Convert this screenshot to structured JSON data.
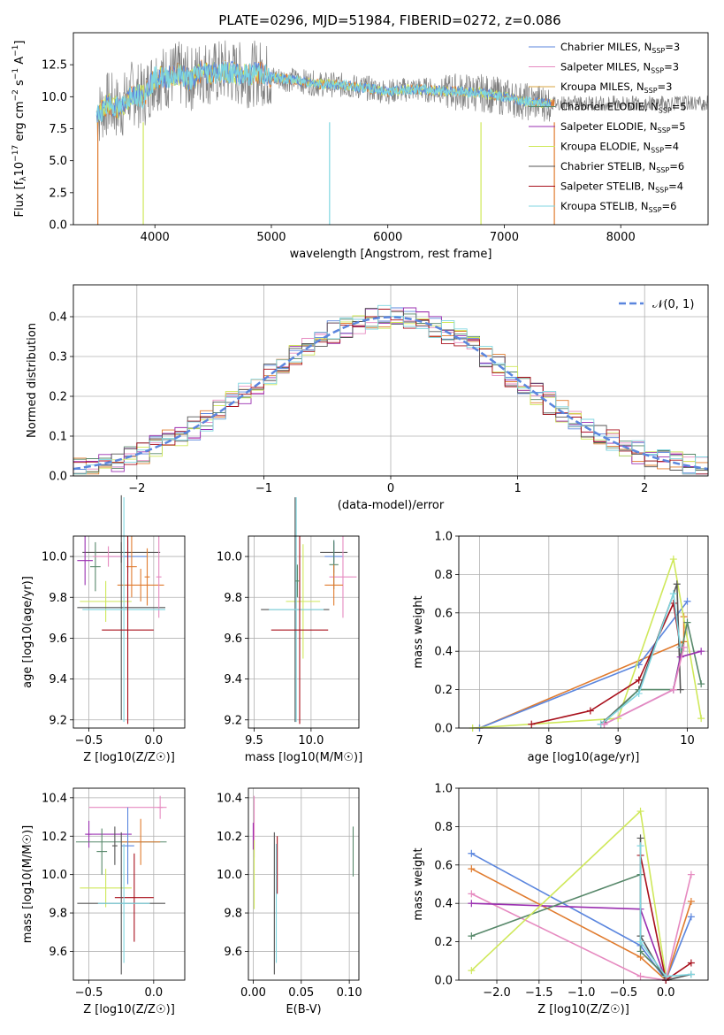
{
  "colors": {
    "chabrier_miles": "#5b86de",
    "salpeter_miles": "#e07b2e",
    "kroupa_miles": "#d9a441",
    "chabrier_elodie": "#57886a",
    "salpeter_elodie": "#9a2fb0",
    "kroupa_elodie": "#cfe85a",
    "chabrier_stelib": "#555555",
    "salpeter_stelib": "#a8101c",
    "kroupa_stelib": "#7fd6e0",
    "pink": "#e68ac0",
    "grid": "#b0b0b0",
    "normal_curve": "#5b86de"
  },
  "legend": [
    {
      "label": "Chabrier MILES, N",
      "n": "=3",
      "color": "#5b86de"
    },
    {
      "label": "Salpeter MILES, N",
      "n": "=3",
      "color": "#e68ac0"
    },
    {
      "label": "Kroupa MILES, N",
      "n": "=3",
      "color": "#d9a441"
    },
    {
      "label": "Chabrier ELODIE, N",
      "n": "=5",
      "color": "#57886a"
    },
    {
      "label": "Salpeter ELODIE, N",
      "n": "=5",
      "color": "#9a2fb0"
    },
    {
      "label": "Kroupa ELODIE, N",
      "n": "=4",
      "color": "#cfe85a"
    },
    {
      "label": "Chabrier STELIB, N",
      "n": "=6",
      "color": "#555555"
    },
    {
      "label": "Salpeter STELIB, N",
      "n": "=4",
      "color": "#a8101c"
    },
    {
      "label": "Kroupa STELIB, N",
      "n": "=6",
      "color": "#7fd6e0"
    }
  ],
  "legend_sub": "SSP",
  "chart_data": [
    {
      "type": "line",
      "title": "PLATE=0296, MJD=51984, FIBERID=0272, z=0.086",
      "xlabel": "wavelength [Angstrom, rest frame]",
      "ylabel": "Flux [f_λ 10^-17 erg cm^-2 s^-1 A^-1]",
      "xlim": [
        3300,
        8750
      ],
      "ylim": [
        0,
        15
      ],
      "xticks": [
        4000,
        5000,
        6000,
        7000,
        8000
      ],
      "yticks": [
        "0.0",
        "2.5",
        "5.0",
        "7.5",
        "10.0",
        "12.5"
      ],
      "data_x": [
        3500,
        3600,
        3700,
        3800,
        3900,
        4000,
        4100,
        4200,
        4300,
        4400,
        4500,
        4600,
        4700,
        4800,
        4900,
        5000,
        5200,
        5400,
        5600,
        5800,
        6000,
        6200,
        6400,
        6600,
        6800,
        7000,
        7200,
        7400
      ],
      "data_y": [
        8.5,
        9.5,
        9.0,
        10.3,
        10.0,
        11.5,
        11.5,
        11.8,
        11.3,
        12.0,
        11.8,
        12.0,
        11.8,
        11.7,
        11.9,
        11.5,
        11.3,
        11.0,
        10.9,
        10.7,
        10.4,
        10.6,
        10.5,
        10.4,
        10.3,
        10.0,
        9.6,
        9.5
      ],
      "grid": false,
      "legend_position": "upper right"
    },
    {
      "type": "bar",
      "xlabel": "(data-model)/error",
      "ylabel": "Normed distribution",
      "xlim": [
        -2.5,
        2.5
      ],
      "ylim": [
        0,
        0.48
      ],
      "xticks": [
        "−2",
        "−1",
        "0",
        "1",
        "2"
      ],
      "yticks": [
        "0.0",
        "0.1",
        "0.2",
        "0.3",
        "0.4"
      ],
      "normal_label": "𝒩(0, 1)",
      "bin_width": 0.1,
      "bins_left": -2.5,
      "grid": true,
      "legend_position": "upper right"
    },
    {
      "type": "scatter",
      "xlabel": "Z [log10(Z/Z☉)]",
      "ylabel": "age [log10(age/yr)]",
      "xlim": [
        -0.62,
        0.24
      ],
      "ylim": [
        9.16,
        10.1
      ],
      "xticks": [
        "−0.5",
        "0.0"
      ],
      "yticks": [
        "9.2",
        "9.4",
        "9.6",
        "9.8",
        "10.0"
      ],
      "grid": true
    },
    {
      "type": "scatter",
      "xlabel": "mass [log10(M/M☉)]",
      "xlim": [
        9.45,
        10.42
      ],
      "ylim": [
        9.16,
        10.1
      ],
      "xticks": [
        "9.5",
        "10.0"
      ],
      "yticks": [
        "9.2",
        "9.4",
        "9.6",
        "9.8",
        "10.0"
      ],
      "grid": true
    },
    {
      "type": "line",
      "xlabel": "age [log10(age/yr)]",
      "ylabel": "mass weight",
      "xlim": [
        6.7,
        10.3
      ],
      "ylim": [
        0,
        1
      ],
      "xticks": [
        "7",
        "8",
        "9",
        "10"
      ],
      "yticks": [
        "0.0",
        "0.2",
        "0.4",
        "0.6",
        "0.8",
        "1.0"
      ],
      "grid": true
    },
    {
      "type": "scatter",
      "xlabel": "Z [log10(Z/Z☉)]",
      "ylabel": "mass [log10(M/M☉)]",
      "xlim": [
        -0.62,
        0.24
      ],
      "ylim": [
        9.45,
        10.45
      ],
      "xticks": [
        "−0.5",
        "0.0"
      ],
      "yticks": [
        "9.6",
        "9.8",
        "10.0",
        "10.2",
        "10.4"
      ],
      "grid": true
    },
    {
      "type": "scatter",
      "xlabel": "E(B-V)",
      "xlim": [
        -0.005,
        0.11
      ],
      "ylim": [
        9.45,
        10.45
      ],
      "xticks": [
        "0.00",
        "0.05",
        "0.10"
      ],
      "yticks": [
        "9.6",
        "9.8",
        "10.0",
        "10.2",
        "10.4"
      ],
      "grid": true
    },
    {
      "type": "line",
      "xlabel": "Z [log10(Z/Z☉)]",
      "ylabel": "mass weight",
      "xlim": [
        -2.45,
        0.5
      ],
      "ylim": [
        0,
        1
      ],
      "xticks": [
        "−2.0",
        "−1.5",
        "−1.0",
        "−0.5",
        "0.0"
      ],
      "yticks": [
        "0.0",
        "0.2",
        "0.4",
        "0.6",
        "0.8",
        "1.0"
      ],
      "grid": true
    }
  ]
}
